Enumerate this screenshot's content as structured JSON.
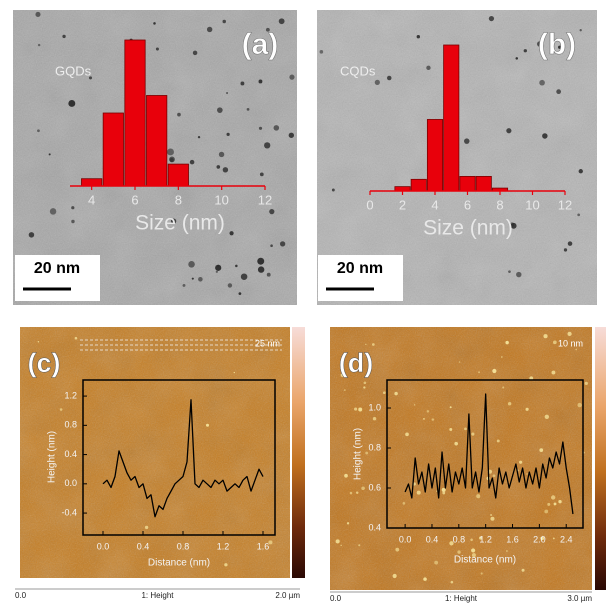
{
  "chart_data": [
    {
      "type": "bar",
      "panel_label": "(a)",
      "label": "GQDs",
      "xlabel": "Size (nm)",
      "scale_bar": "20 nm",
      "x": [
        4,
        5,
        6,
        7,
        8
      ],
      "values": [
        5,
        50,
        100,
        62,
        15
      ],
      "color": "#e8000b",
      "xlim": [
        3,
        12
      ],
      "xticks": [
        4,
        6,
        8,
        10,
        12
      ],
      "ylim": [
        0,
        100
      ]
    },
    {
      "type": "bar",
      "panel_label": "(b)",
      "label": "CQDs",
      "xlabel": "Size (nm)",
      "scale_bar": "20 nm",
      "x": [
        2,
        3,
        4,
        5,
        6,
        7,
        8
      ],
      "values": [
        3,
        8,
        49,
        100,
        10,
        10,
        2
      ],
      "color": "#e8000b",
      "xlim": [
        0,
        12
      ],
      "xticks": [
        0,
        2,
        4,
        6,
        8,
        10,
        12
      ],
      "ylim": [
        0,
        100
      ]
    },
    {
      "type": "line",
      "panel_label": "(c)",
      "height_scale": "25 nm",
      "xlabel": "Distance (nm)",
      "ylabel": "Height (nm)",
      "ruler": [
        "0.0",
        "1: Height",
        "2.0 µm"
      ],
      "color": "#000000",
      "x": [
        0,
        0.04,
        0.08,
        0.12,
        0.16,
        0.2,
        0.24,
        0.28,
        0.32,
        0.36,
        0.4,
        0.44,
        0.48,
        0.52,
        0.56,
        0.6,
        0.64,
        0.68,
        0.72,
        0.76,
        0.8,
        0.84,
        0.88,
        0.92,
        0.96,
        1.0,
        1.04,
        1.08,
        1.12,
        1.16,
        1.2,
        1.24,
        1.28,
        1.32,
        1.36,
        1.4,
        1.44,
        1.48,
        1.52,
        1.56,
        1.6
      ],
      "values": [
        0.0,
        0.05,
        -0.05,
        0.1,
        0.45,
        0.3,
        0.15,
        0.05,
        0.1,
        -0.05,
        0.0,
        -0.2,
        -0.15,
        -0.45,
        -0.3,
        -0.35,
        -0.2,
        -0.1,
        0.0,
        0.05,
        0.1,
        0.3,
        1.15,
        0.0,
        -0.05,
        0.05,
        0.0,
        -0.05,
        0.05,
        0.0,
        0.05,
        -0.1,
        -0.05,
        0.0,
        -0.05,
        0.05,
        0.1,
        -0.1,
        0.05,
        0.2,
        0.1
      ],
      "xlim": [
        -0.2,
        1.72
      ],
      "ylim": [
        -0.7,
        1.42
      ],
      "xticks": [
        {
          "value": 0,
          "label": "0.0"
        },
        0.4,
        0.8,
        1.2,
        1.6
      ],
      "yticks": [
        -0.4,
        {
          "value": 0,
          "label": "0.0"
        },
        0.4,
        0.8,
        1.2
      ]
    },
    {
      "type": "line",
      "panel_label": "(d)",
      "height_scale": "10 nm",
      "xlabel": "Distance (nm)",
      "ylabel": "Height (nm)",
      "ruler": [
        "0.0",
        "1: Height",
        "3.0 µm"
      ],
      "color": "#000000",
      "x": [
        0,
        0.05,
        0.1,
        0.15,
        0.2,
        0.25,
        0.3,
        0.35,
        0.4,
        0.45,
        0.5,
        0.55,
        0.6,
        0.65,
        0.7,
        0.75,
        0.8,
        0.85,
        0.9,
        0.95,
        1.0,
        1.05,
        1.1,
        1.15,
        1.2,
        1.25,
        1.3,
        1.35,
        1.4,
        1.45,
        1.5,
        1.55,
        1.6,
        1.65,
        1.7,
        1.75,
        1.8,
        1.85,
        1.9,
        1.95,
        2.0,
        2.05,
        2.1,
        2.15,
        2.2,
        2.25,
        2.3,
        2.35,
        2.4,
        2.45,
        2.5
      ],
      "values": [
        0.58,
        0.62,
        0.55,
        0.75,
        0.62,
        0.68,
        0.58,
        0.72,
        0.6,
        0.7,
        0.55,
        0.78,
        0.6,
        0.72,
        0.58,
        0.68,
        0.62,
        0.7,
        0.6,
        0.97,
        0.6,
        0.68,
        0.58,
        0.7,
        1.07,
        0.6,
        0.65,
        0.55,
        0.7,
        0.62,
        0.68,
        0.6,
        0.66,
        0.72,
        0.63,
        0.7,
        0.6,
        0.68,
        0.62,
        0.7,
        0.6,
        0.72,
        0.65,
        0.75,
        0.7,
        0.78,
        0.72,
        0.83,
        0.7,
        0.6,
        0.47
      ],
      "xlim": [
        -0.27,
        2.65
      ],
      "ylim": [
        0.4,
        1.14
      ],
      "xticks": [
        {
          "value": 0,
          "label": "0.0"
        },
        0.4,
        0.8,
        1.2,
        1.6,
        {
          "value": 2,
          "label": "2.0"
        },
        2.4
      ],
      "yticks": [
        0.4,
        0.6,
        0.8,
        {
          "value": 1,
          "label": "1.0"
        }
      ]
    }
  ]
}
